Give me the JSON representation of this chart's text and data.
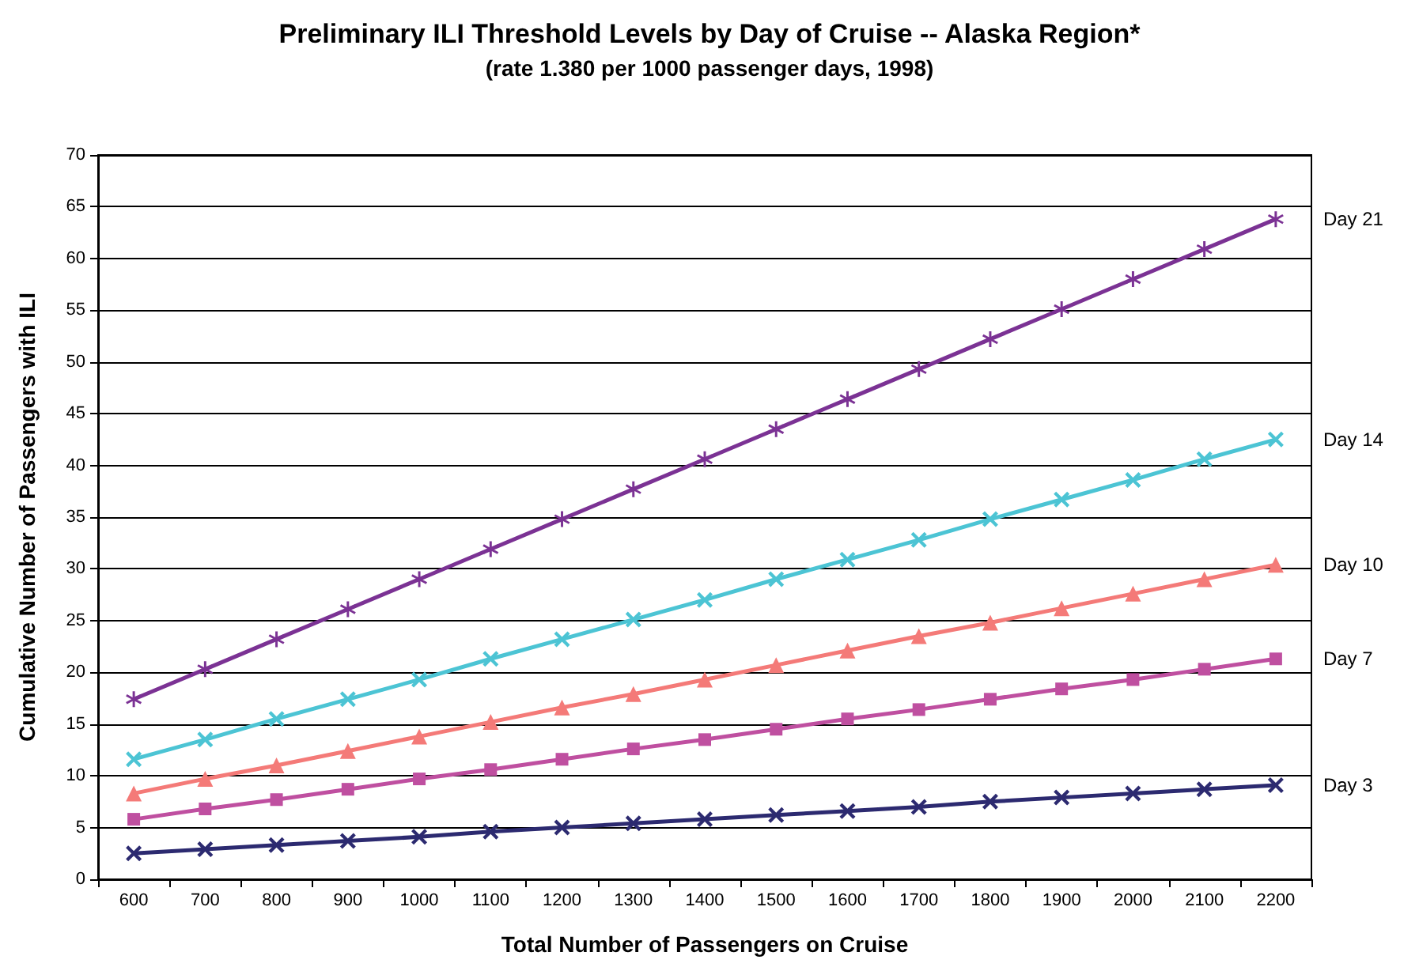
{
  "chart_data": {
    "type": "line",
    "title": "Preliminary ILI Threshold Levels by Day of Cruise -- Alaska Region*",
    "subtitle": "(rate 1.380 per 1000 passenger days, 1998)",
    "xlabel": "Total Number of Passengers on Cruise",
    "ylabel": "Cumulative Number of Passengers with ILI",
    "categories": [
      "600",
      "700",
      "800",
      "900",
      "1000",
      "1100",
      "1200",
      "1300",
      "1400",
      "1500",
      "1600",
      "1700",
      "1800",
      "1900",
      "2000",
      "2100",
      "2200"
    ],
    "series": [
      {
        "name": "Day 21",
        "color": "#7b3294",
        "marker": "star",
        "values": [
          17.4,
          20.3,
          23.2,
          26.1,
          29.0,
          31.9,
          34.8,
          37.7,
          40.6,
          43.5,
          46.4,
          49.3,
          52.2,
          55.1,
          58.0,
          60.9,
          63.8
        ]
      },
      {
        "name": "Day 14",
        "color": "#4cc4d4",
        "marker": "cross",
        "values": [
          11.6,
          13.5,
          15.5,
          17.4,
          19.3,
          21.3,
          23.2,
          25.1,
          27.0,
          29.0,
          30.9,
          32.8,
          34.8,
          36.7,
          38.6,
          40.6,
          42.5
        ]
      },
      {
        "name": "Day 10",
        "color": "#f47a78",
        "marker": "triangle",
        "values": [
          8.3,
          9.7,
          11.0,
          12.4,
          13.8,
          15.2,
          16.6,
          17.9,
          19.3,
          20.7,
          22.1,
          23.5,
          24.8,
          26.2,
          27.6,
          29.0,
          30.4
        ]
      },
      {
        "name": "Day 7",
        "color": "#bf4fa0",
        "marker": "square",
        "values": [
          5.8,
          6.8,
          7.7,
          8.7,
          9.7,
          10.6,
          11.6,
          12.6,
          13.5,
          14.5,
          15.5,
          16.4,
          17.4,
          18.4,
          19.3,
          20.3,
          21.3
        ]
      },
      {
        "name": "Day 3",
        "color": "#2c2a70",
        "marker": "cross",
        "values": [
          2.5,
          2.9,
          3.3,
          3.7,
          4.1,
          4.6,
          5.0,
          5.4,
          5.8,
          6.2,
          6.6,
          7.0,
          7.5,
          7.9,
          8.3,
          8.7,
          9.1
        ]
      }
    ],
    "ylim": [
      0,
      70
    ],
    "yticks": [
      0,
      5,
      10,
      15,
      20,
      25,
      30,
      35,
      40,
      45,
      50,
      55,
      60,
      65,
      70
    ],
    "grid": "y",
    "legend": false,
    "line_style": "solid"
  }
}
